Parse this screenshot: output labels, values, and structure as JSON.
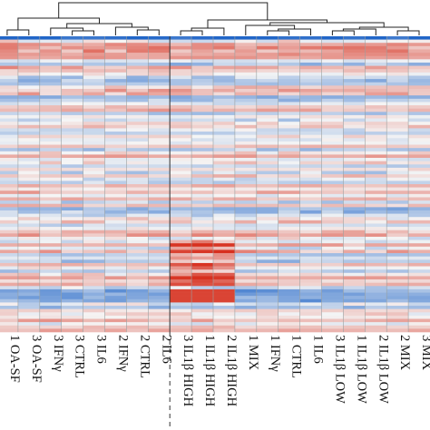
{
  "chart_data": {
    "type": "heatmap",
    "title": "",
    "xlabel": "",
    "ylabel": "",
    "columns": [
      "1 OA-SF",
      "3 OA-SF",
      "3 IFNγ",
      "3 CTRL",
      "3 IL6",
      "2 IFNγ",
      "2 CTRL",
      "2 IL6",
      "3 IL1β HIGH",
      "1 IL1β HIGH",
      "2 IL1β HIGH",
      "1 MIX",
      "1 IFNγ",
      "1 CTRL",
      "1 IL6",
      "3 IL1β LOW",
      "1 IL1β LOW",
      "2 IL1β LOW",
      "2 MIX",
      "3 MIX"
    ],
    "column_groups": [
      {
        "columns": [
          "1 OA-SF",
          "3 OA-SF",
          "3 IFNγ",
          "3 CTRL",
          "3 IL6",
          "2 IFNγ",
          "2 CTRL",
          "2 IL6"
        ]
      },
      {
        "columns": [
          "3 IL1β HIGH",
          "1 IL1β HIGH",
          "2 IL1β HIGH",
          "1 MIX",
          "1 IFNγ",
          "1 CTRL",
          "1 IL6",
          "3 IL1β LOW",
          "1 IL1β LOW",
          "2 IL1β LOW",
          "2 MIX",
          "3 MIX"
        ]
      }
    ],
    "row_count": 90,
    "color_scale": {
      "low": "#2166c8",
      "mid": "#f5f5f5",
      "high": "#d7301f"
    },
    "value_range": [
      -1,
      1
    ],
    "column_dendrogram": true,
    "grid": true,
    "legend": "none"
  }
}
